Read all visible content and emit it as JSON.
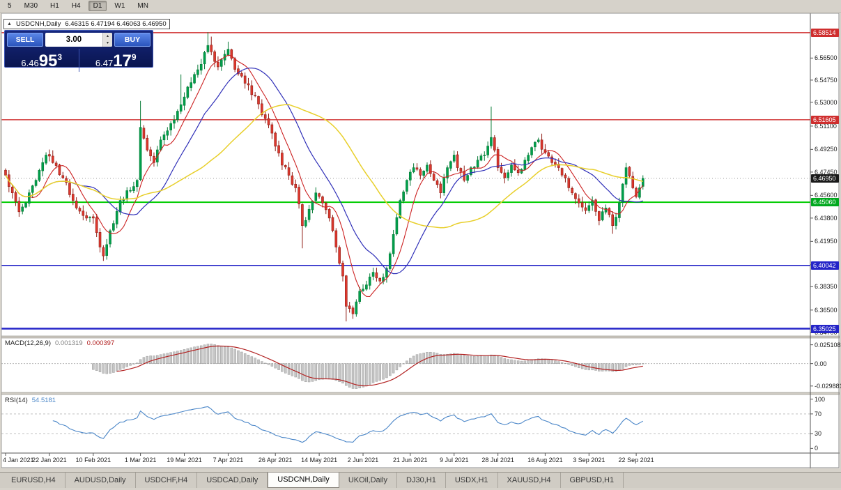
{
  "toolbar": {
    "timeframes": [
      {
        "label": "5"
      },
      {
        "label": "M30"
      },
      {
        "label": "H1"
      },
      {
        "label": "H4"
      },
      {
        "label": "D1",
        "active": true
      },
      {
        "label": "W1"
      },
      {
        "label": "MN"
      }
    ]
  },
  "chart_header": {
    "collapse_icon": "▲",
    "symbol_period": "USDCNH,Daily",
    "ohlc": "6.46315 6.47194 6.46063 6.46950"
  },
  "one_click": {
    "sell": {
      "label": "SELL",
      "price_small": "6.46",
      "price_big": "95",
      "price_sup": "3"
    },
    "volume": "3.00",
    "up_arrow": "▴",
    "down_arrow": "▾",
    "buy": {
      "label": "BUY",
      "price_small": "6.47",
      "price_big": "17",
      "price_sup": "9"
    }
  },
  "price_axis": {
    "ticks": [
      "6.56500",
      "6.54750",
      "6.53000",
      "6.51100",
      "6.49250",
      "6.47450",
      "6.45600",
      "6.43800",
      "6.41950",
      "6.40100",
      "6.38350",
      "6.36500",
      "6.34700"
    ],
    "badges": [
      {
        "label": "6.58514",
        "price": 6.58514,
        "color": "#cf2e2e"
      },
      {
        "label": "6.51605",
        "price": 6.51605,
        "color": "#cf2e2e"
      },
      {
        "label": "6.46950",
        "price": 6.4695,
        "color": "#1a1a1a"
      },
      {
        "label": "6.45060",
        "price": 6.4506,
        "color": "#00a81e"
      },
      {
        "label": "6.40042",
        "price": 6.40042,
        "color": "#2424c8"
      },
      {
        "label": "6.35025",
        "price": 6.35025,
        "color": "#2424c8"
      }
    ]
  },
  "macd_panel": {
    "label": "MACD(12,26,9)",
    "value_main": "0.001319",
    "value_signal": "0.000397",
    "ticks": [
      "0.025108",
      "0.00",
      "-0.029881"
    ]
  },
  "rsi_panel": {
    "label": "RSI(14)",
    "value": "54.5181",
    "ticks": [
      "100",
      "70",
      "30",
      "0"
    ]
  },
  "tab_bar": {
    "tabs": [
      {
        "label": "EURUSD,H4"
      },
      {
        "label": "AUDUSD,Daily"
      },
      {
        "label": "USDCHF,H4"
      },
      {
        "label": "USDCAD,Daily"
      },
      {
        "label": "USDCNH,Daily",
        "active": true
      },
      {
        "label": "UKOil,Daily"
      },
      {
        "label": "DJ30,H1"
      },
      {
        "label": "USDX,H1"
      },
      {
        "label": "XAUUSD,H4"
      },
      {
        "label": "GBPUSD,H1"
      }
    ]
  },
  "chart_data": {
    "type": "candlestick",
    "symbol": "USDCNH",
    "period": "Daily",
    "ohlc_current": {
      "open": 6.46315,
      "high": 6.47194,
      "low": 6.46063,
      "close": 6.4695
    },
    "y_range": [
      6.345,
      6.6
    ],
    "num_candles": 190,
    "close_anchors": [
      [
        0,
        6.472
      ],
      [
        2,
        6.458
      ],
      [
        4,
        6.443
      ],
      [
        6,
        6.45
      ],
      [
        9,
        6.468
      ],
      [
        12,
        6.488
      ],
      [
        14,
        6.482
      ],
      [
        17,
        6.47
      ],
      [
        20,
        6.452
      ],
      [
        23,
        6.44
      ],
      [
        26,
        6.438
      ],
      [
        28,
        6.415
      ],
      [
        29,
        6.408
      ],
      [
        31,
        6.428
      ],
      [
        34,
        6.452
      ],
      [
        37,
        6.46
      ],
      [
        39,
        6.468
      ],
      [
        40,
        6.51
      ],
      [
        42,
        6.492
      ],
      [
        44,
        6.482
      ],
      [
        46,
        6.5
      ],
      [
        49,
        6.513
      ],
      [
        52,
        6.528
      ],
      [
        54,
        6.542
      ],
      [
        56,
        6.552
      ],
      [
        58,
        6.56
      ],
      [
        60,
        6.575
      ],
      [
        61,
        6.57
      ],
      [
        63,
        6.558
      ],
      [
        65,
        6.568
      ],
      [
        66,
        6.572
      ],
      [
        68,
        6.556
      ],
      [
        71,
        6.545
      ],
      [
        74,
        6.535
      ],
      [
        76,
        6.52
      ],
      [
        78,
        6.512
      ],
      [
        80,
        6.495
      ],
      [
        82,
        6.48
      ],
      [
        84,
        6.472
      ],
      [
        86,
        6.462
      ],
      [
        88,
        6.432
      ],
      [
        90,
        6.445
      ],
      [
        92,
        6.458
      ],
      [
        94,
        6.45
      ],
      [
        96,
        6.438
      ],
      [
        98,
        6.415
      ],
      [
        100,
        6.392
      ],
      [
        101,
        6.368
      ],
      [
        103,
        6.362
      ],
      [
        105,
        6.38
      ],
      [
        107,
        6.385
      ],
      [
        109,
        6.395
      ],
      [
        111,
        6.388
      ],
      [
        113,
        6.398
      ],
      [
        115,
        6.425
      ],
      [
        117,
        6.452
      ],
      [
        119,
        6.468
      ],
      [
        121,
        6.478
      ],
      [
        123,
        6.472
      ],
      [
        125,
        6.48
      ],
      [
        127,
        6.468
      ],
      [
        129,
        6.458
      ],
      [
        131,
        6.478
      ],
      [
        133,
        6.488
      ],
      [
        134,
        6.478
      ],
      [
        136,
        6.468
      ],
      [
        138,
        6.478
      ],
      [
        140,
        6.484
      ],
      [
        142,
        6.488
      ],
      [
        144,
        6.502
      ],
      [
        146,
        6.478
      ],
      [
        148,
        6.47
      ],
      [
        150,
        6.48
      ],
      [
        152,
        6.474
      ],
      [
        154,
        6.484
      ],
      [
        156,
        6.494
      ],
      [
        158,
        6.5
      ],
      [
        160,
        6.49
      ],
      [
        162,
        6.482
      ],
      [
        164,
        6.478
      ],
      [
        166,
        6.47
      ],
      [
        168,
        6.458
      ],
      [
        170,
        6.45
      ],
      [
        172,
        6.444
      ],
      [
        174,
        6.452
      ],
      [
        176,
        6.436
      ],
      [
        178,
        6.446
      ],
      [
        180,
        6.432
      ],
      [
        182,
        6.45
      ],
      [
        184,
        6.478
      ],
      [
        186,
        6.462
      ],
      [
        187,
        6.455
      ],
      [
        188,
        6.462
      ],
      [
        189,
        6.4695
      ]
    ],
    "wick_overrides": {
      "29": {
        "l": 6.404
      },
      "40": {
        "h": 6.531
      },
      "52": {
        "h": 6.552
      },
      "60": {
        "h": 6.5855
      },
      "61": {
        "h": 6.582
      },
      "66": {
        "h": 6.578
      },
      "88": {
        "l": 6.414
      },
      "101": {
        "l": 6.356
      },
      "103": {
        "l": 6.358
      },
      "144": {
        "h": 6.5265
      },
      "159": {
        "h": 6.505
      },
      "180": {
        "l": 6.4255
      }
    },
    "horizontal_levels": [
      {
        "price": 6.58514,
        "color": "#cf2e2e",
        "width": 1.4
      },
      {
        "price": 6.51605,
        "color": "#cf2e2e",
        "width": 1.4
      },
      {
        "price": 6.4506,
        "color": "#00cc00",
        "width": 2
      },
      {
        "price": 6.40042,
        "color": "#2424c8",
        "width": 1.6
      },
      {
        "price": 6.35025,
        "color": "#2424c8",
        "width": 2.6
      }
    ],
    "current_price": 6.4695,
    "moving_averages": [
      {
        "period": 8,
        "color": "#cc2222",
        "width": 1.1
      },
      {
        "period": 20,
        "color": "#2f2fb8",
        "width": 1.2
      },
      {
        "period": 45,
        "color": "#e8cf2a",
        "width": 1.5
      }
    ],
    "x_label_indices": [
      0,
      13,
      26,
      40,
      53,
      66,
      80,
      93,
      106,
      120,
      133,
      146,
      160,
      173,
      187
    ],
    "x_labels": [
      "4 Jan 2021",
      "22 Jan 2021",
      "10 Feb 2021",
      "1 Mar 2021",
      "19 Mar 2021",
      "7 Apr 2021",
      "26 Apr 2021",
      "14 May 2021",
      "2 Jun 2021",
      "21 Jun 2021",
      "9 Jul 2021",
      "28 Jul 2021",
      "16 Aug 2021",
      "3 Sep 2021",
      "22 Sep 2021"
    ],
    "indicators": [
      {
        "name": "MACD",
        "params": [
          12,
          26,
          9
        ],
        "current": [
          0.001319,
          0.000397
        ],
        "scale": [
          0.025108,
          0,
          -0.029881
        ]
      },
      {
        "name": "RSI",
        "params": [
          14
        ],
        "current": 54.5181,
        "levels": [
          70,
          30
        ],
        "scale": [
          100,
          70,
          30,
          0
        ]
      }
    ],
    "colors": {
      "up": "#00a04c",
      "up_border": "#067a36",
      "down": "#dd382e",
      "down_border": "#8f1d15",
      "macd_hist": "#c6c6c6",
      "macd_hist_border": "#9a9a9a",
      "macd_signal": "#b22222",
      "rsi": "#4a86c8"
    }
  }
}
